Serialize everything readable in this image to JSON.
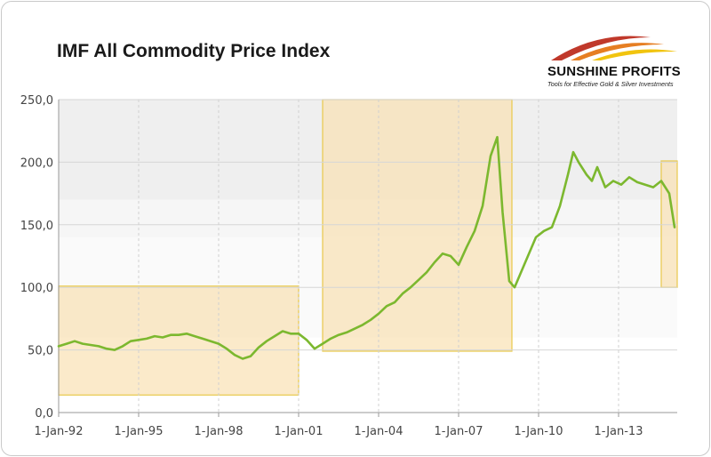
{
  "title": "IMF All Commodity Price Index",
  "logo": {
    "name": "SUNSHINE PROFITS",
    "tagline": "Tools for Effective Gold & Silver Investments",
    "colors": [
      "#c0392b",
      "#e67e22",
      "#f1c40f",
      "#b0b0b0"
    ]
  },
  "chart_data": {
    "type": "line",
    "title": "IMF All Commodity Price Index",
    "xlabel": "",
    "ylabel": "",
    "ylim": [
      0,
      250
    ],
    "xlim": [
      1992.0,
      2015.2
    ],
    "grid": true,
    "y_ticks": [
      "0,0",
      "50,0",
      "100,0",
      "150,0",
      "200,0",
      "250,0"
    ],
    "x_ticks": [
      "1-Jan-92",
      "1-Jan-95",
      "1-Jan-98",
      "1-Jan-01",
      "1-Jan-04",
      "1-Jan-07",
      "1-Jan-10",
      "1-Jan-13"
    ],
    "colors": {
      "line": "#7cb82f",
      "highlight_fill": "#f9dfae",
      "highlight_border": "#e8c84a"
    },
    "highlight_boxes": [
      {
        "x0": 1992.0,
        "x1": 2001.0,
        "y0": 14,
        "y1": 101
      },
      {
        "x0": 2001.9,
        "x1": 2009.0,
        "y0": 49,
        "y1": 250
      },
      {
        "x0": 2014.6,
        "x1": 2015.6,
        "y0": 100,
        "y1": 201
      }
    ],
    "series": [
      {
        "x": [
          1992.0,
          1992.3,
          1992.6,
          1992.9,
          1993.2,
          1993.5,
          1993.8,
          1994.1,
          1994.4,
          1994.7,
          1995.0,
          1995.3,
          1995.6,
          1995.9,
          1996.2,
          1996.5,
          1996.8,
          1997.1,
          1997.4,
          1997.7,
          1998.0,
          1998.3,
          1998.6,
          1998.9,
          1999.2,
          1999.5,
          1999.8,
          2000.1,
          2000.4,
          2000.7,
          2001.0,
          2001.3,
          2001.6,
          2001.9,
          2002.2,
          2002.5,
          2002.8,
          2003.1,
          2003.4,
          2003.7,
          2004.0,
          2004.3,
          2004.6,
          2004.9,
          2005.2,
          2005.5,
          2005.8,
          2006.1,
          2006.4,
          2006.7,
          2007.0,
          2007.3,
          2007.6,
          2007.9,
          2008.2,
          2008.45,
          2008.65,
          2008.9,
          2009.1,
          2009.3,
          2009.6,
          2009.9,
          2010.2,
          2010.5,
          2010.8,
          2011.1,
          2011.3,
          2011.5,
          2011.8,
          2012.0,
          2012.2,
          2012.5,
          2012.8,
          2013.1,
          2013.4,
          2013.7,
          2014.0,
          2014.3,
          2014.6,
          2014.9,
          2015.1
        ],
        "values": [
          53,
          55,
          57,
          55,
          54,
          53,
          51,
          50,
          53,
          57,
          58,
          59,
          61,
          60,
          62,
          62,
          63,
          61,
          59,
          57,
          55,
          51,
          46,
          43,
          45,
          52,
          57,
          61,
          65,
          63,
          63,
          58,
          51,
          55,
          59,
          62,
          64,
          67,
          70,
          74,
          79,
          85,
          88,
          95,
          100,
          106,
          112,
          120,
          127,
          125,
          118,
          132,
          145,
          165,
          205,
          220,
          160,
          105,
          100,
          110,
          125,
          140,
          145,
          148,
          165,
          190,
          208,
          200,
          190,
          185,
          196,
          180,
          185,
          182,
          188,
          184,
          182,
          180,
          185,
          175,
          148
        ]
      }
    ]
  }
}
